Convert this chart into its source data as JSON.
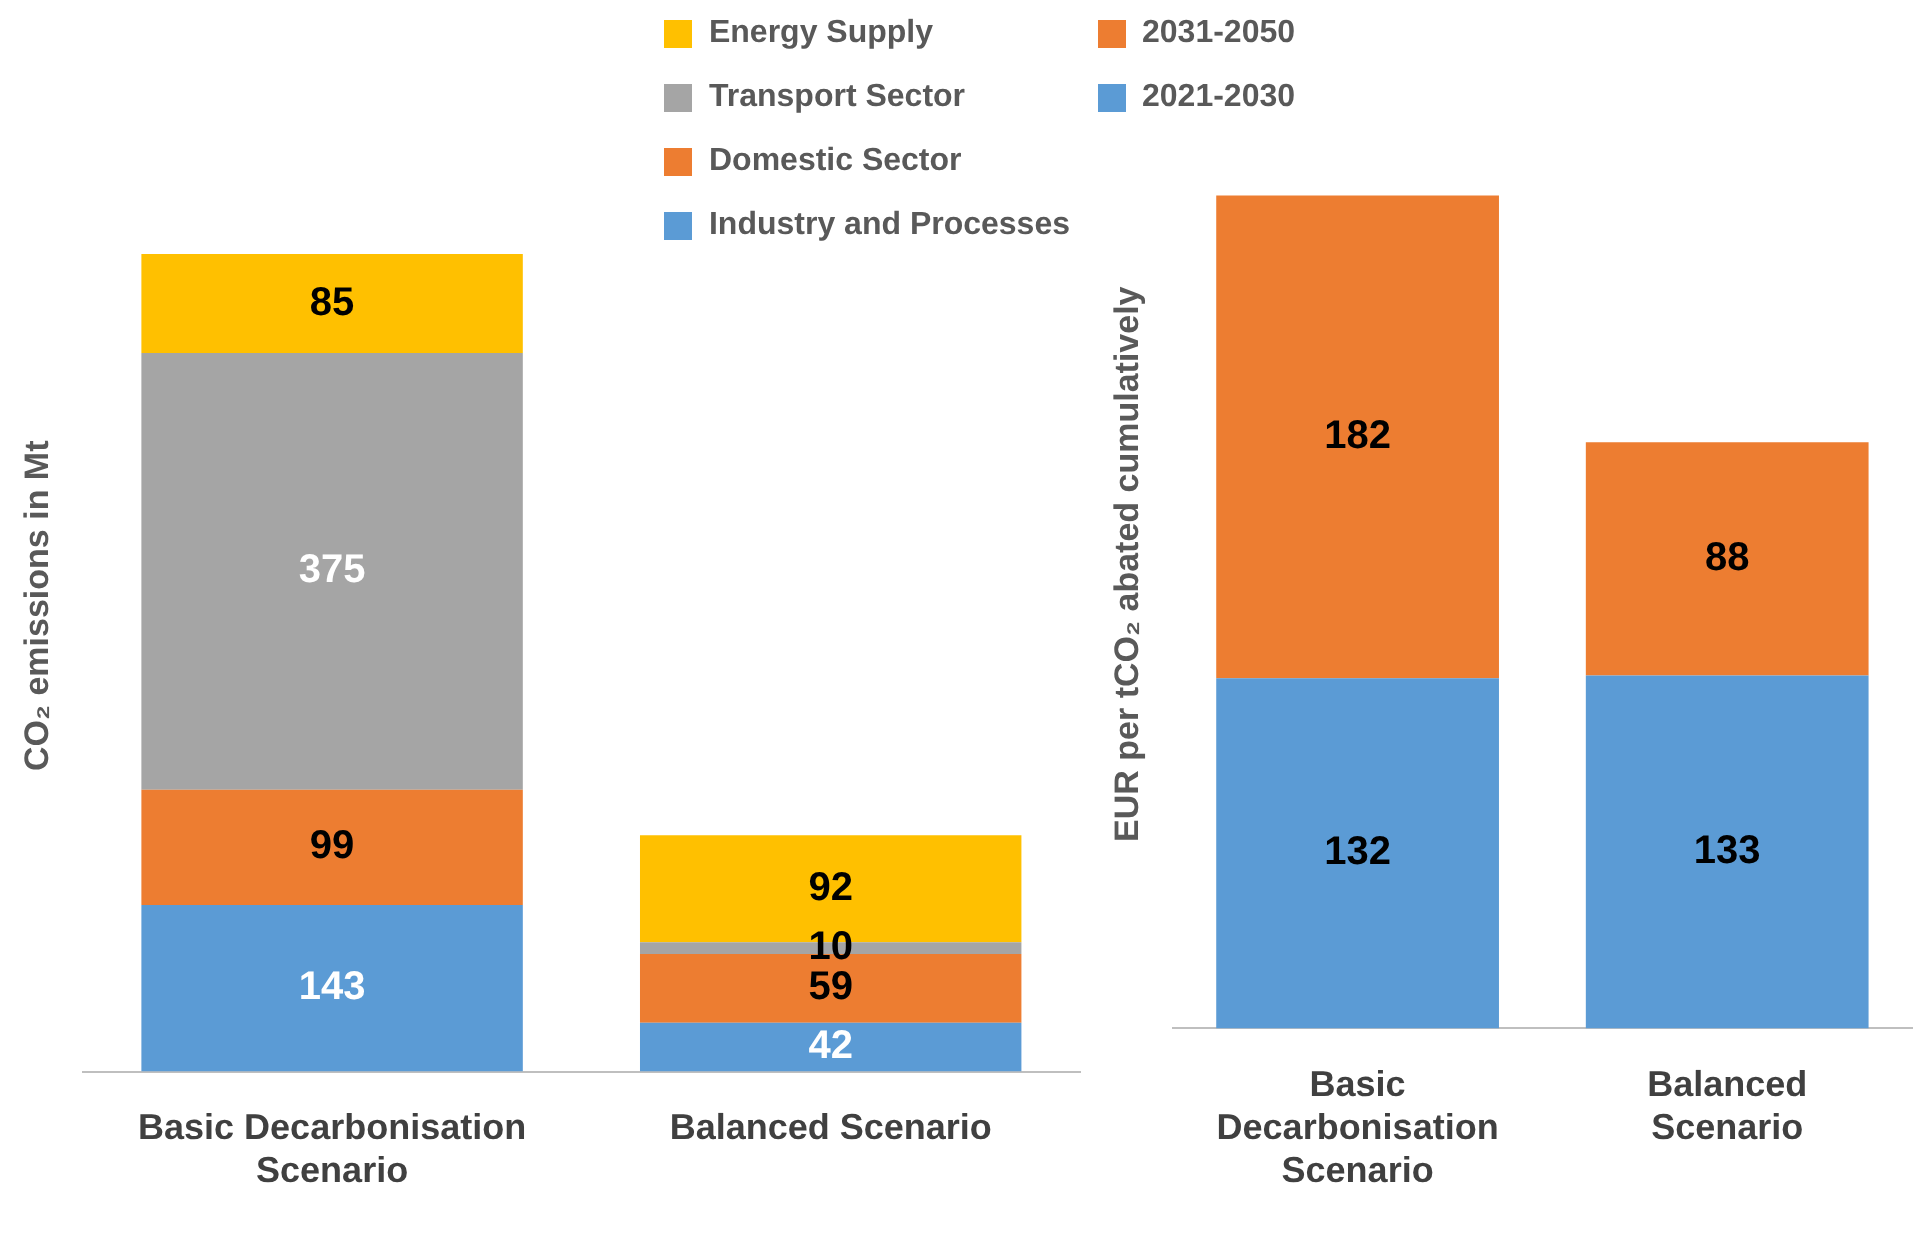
{
  "chart_data": [
    {
      "type": "bar",
      "stacked": true,
      "ylabel": "CO₂ emissions in Mt",
      "categories": [
        "Basic Decarbonisation Scenario",
        "Balanced Scenario"
      ],
      "series": [
        {
          "name": "Industry and Processes",
          "color": "#5b9bd5",
          "values": [
            143,
            42
          ]
        },
        {
          "name": "Domestic Sector",
          "color": "#ed7d31",
          "values": [
            99,
            59
          ]
        },
        {
          "name": "Transport Sector",
          "color": "#a5a5a5",
          "values": [
            375,
            10
          ]
        },
        {
          "name": "Energy Supply",
          "color": "#ffc000",
          "values": [
            85,
            92
          ]
        }
      ],
      "data_labels": true,
      "grid": false,
      "legend": "top right"
    },
    {
      "type": "bar",
      "stacked": true,
      "ylabel": "EUR per tCO₂ abated cumulatively",
      "categories": [
        "Basic Decarbonisation Scenario",
        "Balanced Scenario"
      ],
      "series": [
        {
          "name": "2021-2030",
          "color": "#5b9bd5",
          "values": [
            132,
            133
          ]
        },
        {
          "name": "2031-2050",
          "color": "#ed7d31",
          "values": [
            182,
            88
          ]
        }
      ],
      "data_labels": true,
      "grid": false,
      "legend": "top left"
    }
  ]
}
